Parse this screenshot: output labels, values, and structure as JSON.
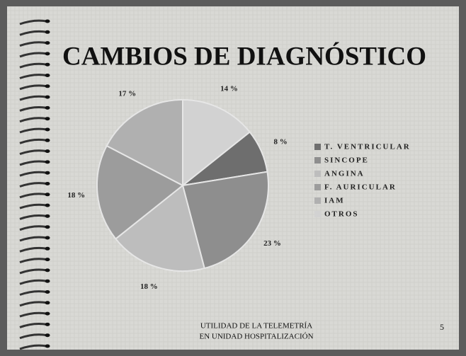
{
  "chart_data": {
    "type": "pie",
    "title": "CAMBIOS DE DIAGNÓSTICO",
    "categories": [
      "T. VENTRICULAR",
      "SINCOPE",
      "ANGINA",
      "F. AURICULAR",
      "IAM",
      "OTROS"
    ],
    "values": [
      8,
      23,
      18,
      18,
      17,
      14
    ],
    "value_labels": [
      "8 %",
      "23 %",
      "18 %",
      "18 %",
      "17 %",
      "14 %"
    ],
    "colors": [
      "#6e6e6e",
      "#8e8e8e",
      "#bdbdbd",
      "#9c9c9c",
      "#b0b0b0",
      "#d2d2d2"
    ],
    "legend": "right"
  },
  "footer": {
    "lines": [
      "UTILIDAD DE LA TELEMETRÍA",
      "EN UNIDAD HOSPITALIZACIÓN"
    ],
    "page_number": "5"
  }
}
